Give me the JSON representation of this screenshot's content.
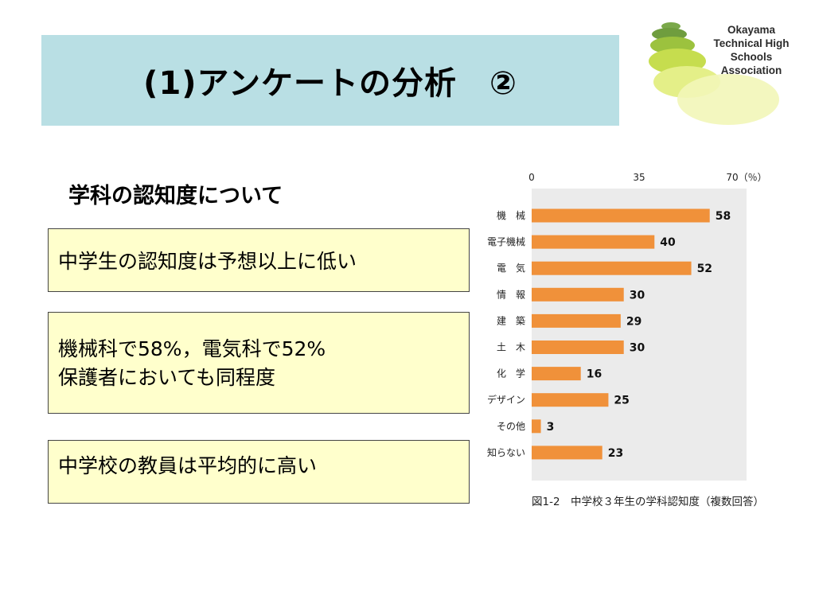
{
  "slide": {
    "title": "(1)アンケートの分析　②",
    "logo": {
      "line1": "Okayama",
      "line2": "Technical High Schools",
      "line3": "Association"
    },
    "section_heading": "学科の認知度について",
    "callouts": [
      {
        "lines": [
          "中学生の認知度は予想以上に低い"
        ]
      },
      {
        "lines": [
          "機械科で58%，電気科で52%",
          "保護者においても同程度"
        ]
      },
      {
        "lines": [
          "中学校の教員は平均的に高い"
        ]
      }
    ]
  },
  "chart_data": {
    "type": "bar",
    "orientation": "horizontal",
    "categories": [
      "機　械",
      "電子機械",
      "電　気",
      "情　報",
      "建　築",
      "土　木",
      "化　学",
      "デザイン",
      "その他",
      "知らない"
    ],
    "values": [
      58,
      40,
      52,
      30,
      29,
      30,
      16,
      25,
      3,
      23
    ],
    "value_labels": [
      "58",
      "40",
      "52",
      "30",
      "29",
      "30",
      "16",
      "25",
      "3",
      "23"
    ],
    "xlim": [
      0,
      70
    ],
    "ticks": [
      0,
      35,
      70
    ],
    "tick_labels": [
      "0",
      "35",
      "70（％）"
    ],
    "bar_color": "#f0913a",
    "plot_background": "#ebebeb",
    "caption": "図1-2　中学校３年生の学科認知度（複数回答）"
  }
}
